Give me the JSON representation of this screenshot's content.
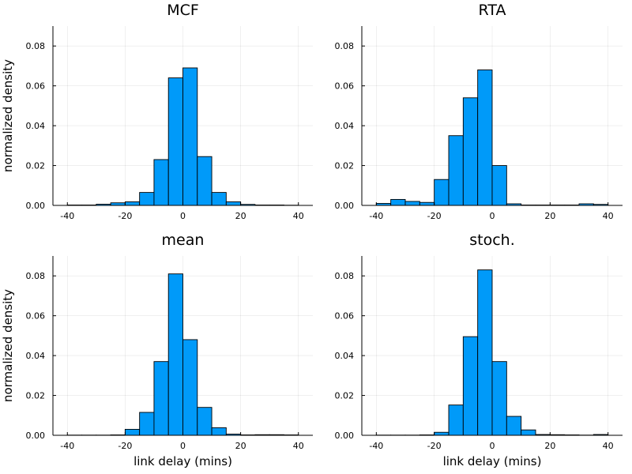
{
  "chart_data": [
    {
      "type": "bar",
      "title": "MCF",
      "xlabel": "",
      "ylabel": "normalized density",
      "xlim": [
        -45,
        45
      ],
      "ylim": [
        0,
        0.09
      ],
      "xticks": [
        -40,
        -20,
        0,
        20,
        40
      ],
      "yticks": [
        0.0,
        0.02,
        0.04,
        0.06,
        0.08
      ],
      "ytick_labels": [
        "0.00",
        "0.02",
        "0.04",
        "0.06",
        "0.08"
      ],
      "grid": true,
      "bin_edges": [
        -40,
        -35,
        -30,
        -25,
        -20,
        -15,
        -10,
        -5,
        0,
        5,
        10,
        15,
        20,
        25,
        30,
        35,
        40
      ],
      "values": [
        0.0002,
        0.0002,
        0.0006,
        0.0013,
        0.0018,
        0.0065,
        0.023,
        0.064,
        0.069,
        0.0245,
        0.0065,
        0.0018,
        0.0005,
        0.0002,
        0.0002,
        0.0001
      ]
    },
    {
      "type": "bar",
      "title": "RTA",
      "xlabel": "",
      "ylabel": "",
      "xlim": [
        -45,
        45
      ],
      "ylim": [
        0,
        0.09
      ],
      "xticks": [
        -40,
        -20,
        0,
        20,
        40
      ],
      "yticks": [
        0.0,
        0.02,
        0.04,
        0.06,
        0.08
      ],
      "ytick_labels": [
        "0.00",
        "0.02",
        "0.04",
        "0.06",
        "0.08"
      ],
      "grid": true,
      "bin_edges": [
        -40,
        -35,
        -30,
        -25,
        -20,
        -15,
        -10,
        -5,
        0,
        5,
        10,
        15,
        20,
        25,
        30,
        35,
        40
      ],
      "values": [
        0.001,
        0.003,
        0.002,
        0.0015,
        0.013,
        0.035,
        0.054,
        0.068,
        0.02,
        0.0008,
        0.0002,
        0.0002,
        0.0002,
        0.0002,
        0.0008,
        0.0005
      ]
    },
    {
      "type": "bar",
      "title": "mean",
      "xlabel": "link delay (mins)",
      "ylabel": "normalized density",
      "xlim": [
        -45,
        45
      ],
      "ylim": [
        0,
        0.09
      ],
      "xticks": [
        -40,
        -20,
        0,
        20,
        40
      ],
      "yticks": [
        0.0,
        0.02,
        0.04,
        0.06,
        0.08
      ],
      "ytick_labels": [
        "0.00",
        "0.02",
        "0.04",
        "0.06",
        "0.08"
      ],
      "grid": true,
      "bin_edges": [
        -40,
        -35,
        -30,
        -25,
        -20,
        -15,
        -10,
        -5,
        0,
        5,
        10,
        15,
        20,
        25,
        30,
        35,
        40
      ],
      "values": [
        0.0001,
        0.0001,
        0.0001,
        0.0002,
        0.003,
        0.0115,
        0.037,
        0.081,
        0.048,
        0.014,
        0.0038,
        0.0006,
        0.0002,
        0.0003,
        0.0003,
        0.0002
      ]
    },
    {
      "type": "bar",
      "title": "stoch.",
      "xlabel": "link delay (mins)",
      "ylabel": "",
      "xlim": [
        -45,
        45
      ],
      "ylim": [
        0,
        0.09
      ],
      "xticks": [
        -40,
        -20,
        0,
        20,
        40
      ],
      "yticks": [
        0.0,
        0.02,
        0.04,
        0.06,
        0.08
      ],
      "ytick_labels": [
        "0.00",
        "0.02",
        "0.04",
        "0.06",
        "0.08"
      ],
      "grid": true,
      "bin_edges": [
        -40,
        -35,
        -30,
        -25,
        -20,
        -15,
        -10,
        -5,
        0,
        5,
        10,
        15,
        20,
        25,
        30,
        35,
        40
      ],
      "values": [
        0.0001,
        0.0001,
        0.0001,
        0.0002,
        0.0015,
        0.0152,
        0.0495,
        0.083,
        0.037,
        0.0095,
        0.0027,
        0.0004,
        0.0003,
        0.0002,
        0.0001,
        0.0004
      ]
    }
  ]
}
